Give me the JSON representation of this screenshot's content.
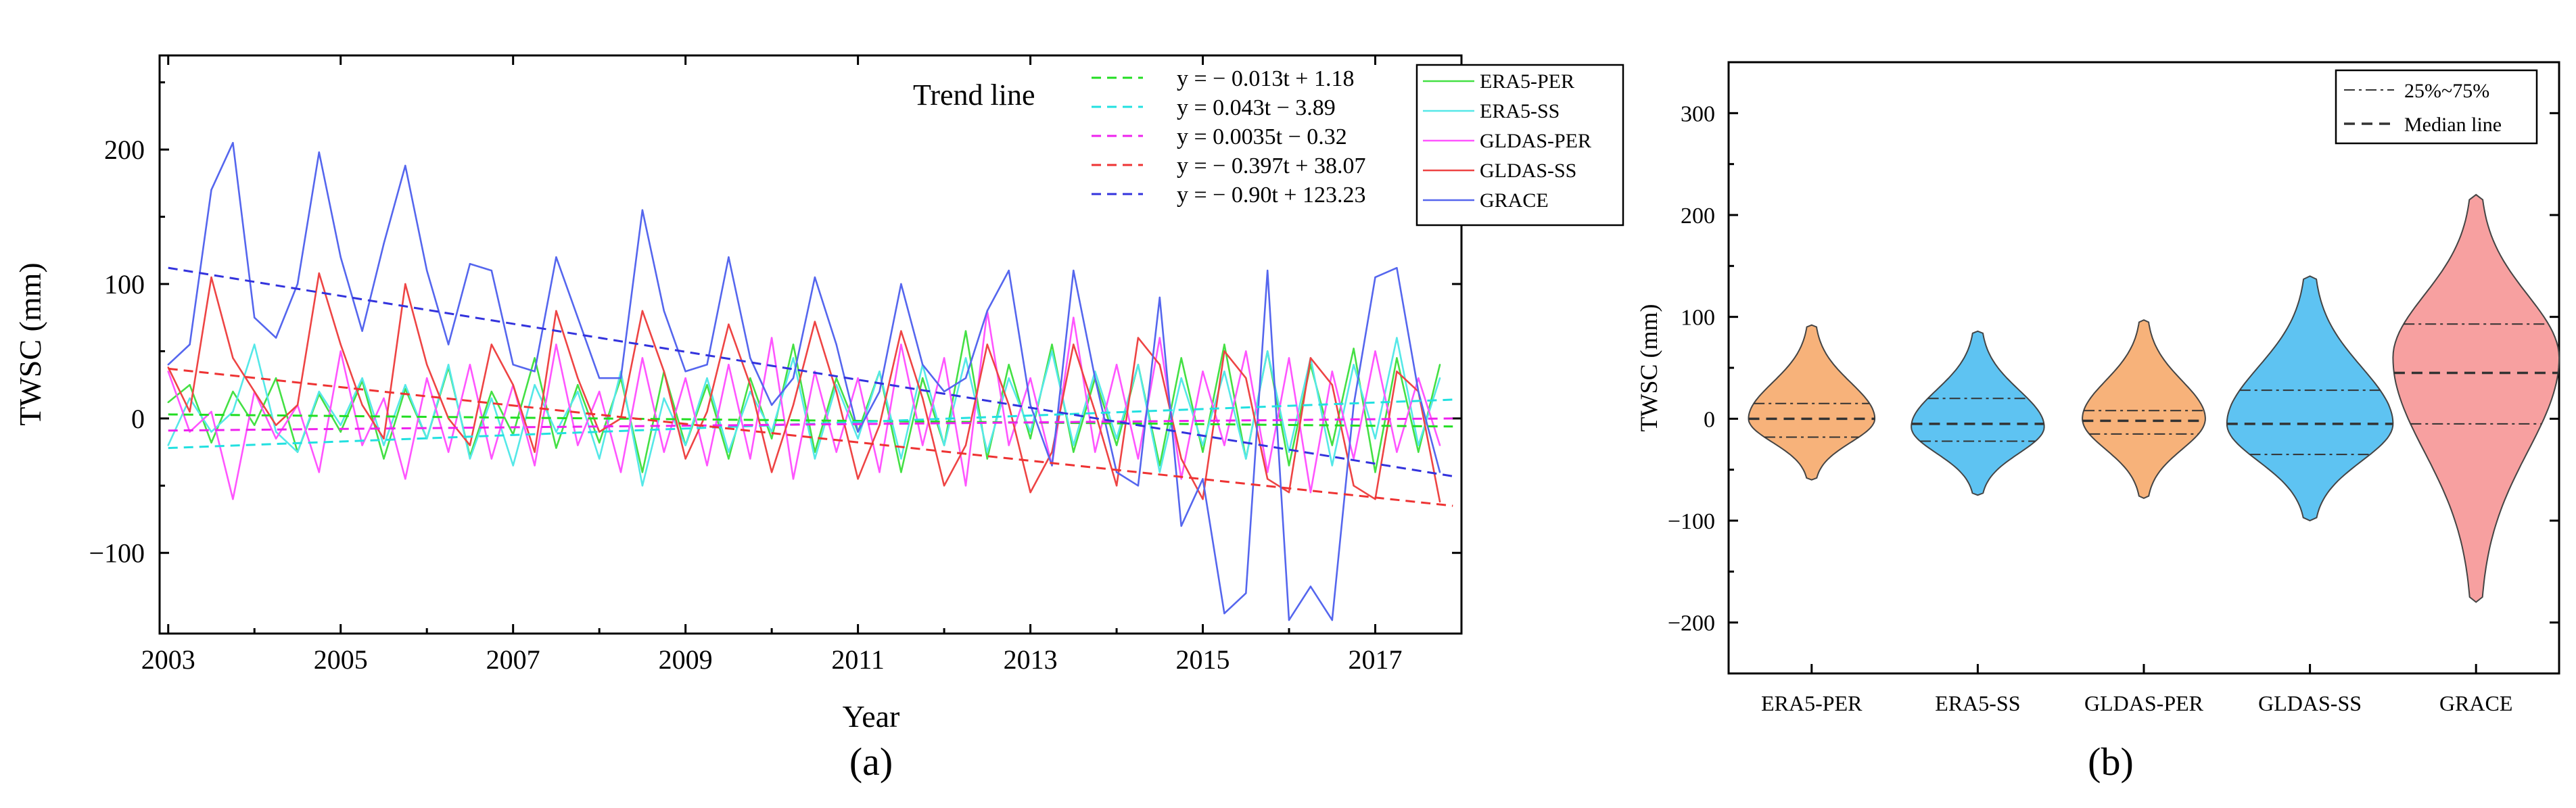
{
  "chart_data": [
    {
      "type": "line",
      "panel_label": "(a)",
      "xlabel": "Year",
      "ylabel": "TWSC (mm)",
      "xlim": [
        2002.9,
        2018.0
      ],
      "ylim": [
        -160,
        270
      ],
      "x_ticks": [
        2003,
        2005,
        2007,
        2009,
        2011,
        2013,
        2015,
        2017
      ],
      "x_tick_labels": [
        "2003",
        "2005",
        "2007",
        "2009",
        "2011",
        "2013",
        "2015",
        "2017"
      ],
      "y_ticks": [
        -100,
        0,
        100,
        200
      ],
      "y_tick_labels": [
        "−100",
        "0",
        "100",
        "200"
      ],
      "legend": {
        "title": "Trend line",
        "position": "top-right",
        "trend_equations": [
          {
            "name": "ERA5-PER",
            "equation": "y = − 0.013t + 1.18",
            "slope": -0.013,
            "intercept": 1.18,
            "color": "#22dd22"
          },
          {
            "name": "ERA5-SS",
            "equation": "y = 0.043t − 3.89",
            "slope": 0.043,
            "intercept": -3.89,
            "color": "#22e0e0"
          },
          {
            "name": "GLDAS-PER",
            "equation": "y = 0.0035t − 0.32",
            "slope": 0.0035,
            "intercept": -0.32,
            "color": "#ee22ee"
          },
          {
            "name": "GLDAS-SS",
            "equation": "y = − 0.397t + 38.07",
            "slope": -0.397,
            "intercept": 38.07,
            "color": "#ee3333"
          },
          {
            "name": "GRACE",
            "equation": "y = − 0.90t + 123.23",
            "slope": -0.9,
            "intercept": 123.23,
            "color": "#3333dd"
          }
        ],
        "series_entries": [
          "ERA5-PER",
          "ERA5-SS",
          "GLDAS-PER",
          "GLDAS-SS",
          "GRACE"
        ]
      },
      "trend_lines": [
        {
          "name": "ERA5-PER",
          "start": [
            2003.0,
            3
          ],
          "end": [
            2017.9,
            -6
          ],
          "color": "#22dd22"
        },
        {
          "name": "ERA5-SS",
          "start": [
            2003.0,
            -22
          ],
          "end": [
            2017.9,
            14
          ],
          "color": "#22e0e0"
        },
        {
          "name": "GLDAS-PER",
          "start": [
            2003.0,
            -9
          ],
          "end": [
            2017.9,
            0
          ],
          "color": "#ee22ee"
        },
        {
          "name": "GLDAS-SS",
          "start": [
            2003.0,
            37
          ],
          "end": [
            2017.9,
            -65
          ],
          "color": "#ee3333"
        },
        {
          "name": "GRACE",
          "start": [
            2003.0,
            112
          ],
          "end": [
            2017.9,
            -43
          ],
          "color": "#3333dd"
        }
      ],
      "series": [
        {
          "name": "ERA5-PER",
          "color": "#44e044",
          "x_start": 2003.0,
          "x_step": 0.25,
          "values": [
            12,
            25,
            -18,
            20,
            -5,
            30,
            -25,
            18,
            -10,
            28,
            -30,
            22,
            -15,
            38,
            -28,
            20,
            -12,
            45,
            -22,
            25,
            -18,
            30,
            -40,
            35,
            -20,
            25,
            -30,
            30,
            -15,
            55,
            -25,
            30,
            -10,
            35,
            -40,
            30,
            -20,
            65,
            -30,
            40,
            -15,
            55,
            -25,
            30,
            -20,
            40,
            -35,
            45,
            -25,
            55,
            -30,
            50,
            -35,
            40,
            -20,
            52,
            -40,
            45,
            -25,
            40
          ]
        },
        {
          "name": "ERA5-SS",
          "color": "#55e8e8",
          "x_start": 2003.0,
          "x_step": 0.25,
          "values": [
            -20,
            15,
            -10,
            5,
            55,
            -10,
            -25,
            20,
            -5,
            30,
            -20,
            25,
            -15,
            40,
            -30,
            15,
            -35,
            25,
            -10,
            20,
            -30,
            35,
            -50,
            15,
            -20,
            30,
            -25,
            20,
            -10,
            45,
            -30,
            25,
            -15,
            35,
            -30,
            40,
            -20,
            45,
            -25,
            30,
            -10,
            50,
            -20,
            35,
            -15,
            40,
            -40,
            30,
            -20,
            35,
            -30,
            50,
            -25,
            45,
            -35,
            40,
            -15,
            60,
            -20,
            30
          ]
        },
        {
          "name": "GLDAS-PER",
          "color": "#ff55ff",
          "x_start": 2003.0,
          "x_step": 0.25,
          "values": [
            35,
            -10,
            5,
            -60,
            20,
            -15,
            10,
            -40,
            50,
            -20,
            15,
            -45,
            30,
            -25,
            40,
            -30,
            25,
            -35,
            55,
            -20,
            20,
            -40,
            45,
            -25,
            30,
            -35,
            40,
            -30,
            60,
            -45,
            35,
            -25,
            30,
            -40,
            55,
            -20,
            45,
            -50,
            80,
            -20,
            30,
            -35,
            75,
            -25,
            40,
            -30,
            60,
            -45,
            35,
            -20,
            50,
            -40,
            45,
            -55,
            35,
            -30,
            50,
            -25,
            30,
            -20
          ]
        },
        {
          "name": "GLDAS-SS",
          "color": "#ee4444",
          "x_start": 2003.0,
          "x_step": 0.25,
          "values": [
            38,
            5,
            105,
            45,
            20,
            -5,
            10,
            108,
            55,
            10,
            -15,
            100,
            40,
            0,
            -20,
            55,
            25,
            -25,
            80,
            30,
            -10,
            0,
            80,
            35,
            -30,
            5,
            70,
            25,
            -40,
            10,
            72,
            20,
            -45,
            -5,
            65,
            15,
            -50,
            -20,
            55,
            10,
            -55,
            -25,
            55,
            5,
            -50,
            60,
            40,
            -30,
            -60,
            50,
            30,
            -45,
            -55,
            45,
            25,
            -50,
            -60,
            35,
            20,
            -62
          ]
        },
        {
          "name": "GRACE",
          "color": "#5566ee",
          "x_start": 2003.0,
          "x_step": 0.25,
          "values": [
            40,
            55,
            170,
            205,
            75,
            60,
            100,
            198,
            120,
            65,
            130,
            188,
            110,
            55,
            115,
            110,
            40,
            35,
            120,
            75,
            30,
            30,
            155,
            80,
            35,
            40,
            120,
            45,
            10,
            30,
            105,
            55,
            -10,
            20,
            100,
            40,
            20,
            30,
            80,
            110,
            10,
            -35,
            110,
            30,
            -40,
            -50,
            90,
            -80,
            -45,
            -145,
            -130,
            110,
            -150,
            -125,
            -150,
            10,
            105,
            112,
            20,
            -40
          ]
        }
      ]
    },
    {
      "type": "violin",
      "panel_label": "(b)",
      "xlabel": "",
      "ylabel": "TWSC (mm)",
      "ylim": [
        -250,
        350
      ],
      "y_ticks": [
        -200,
        -100,
        0,
        100,
        200,
        300
      ],
      "y_tick_labels": [
        "−200",
        "−100",
        "0",
        "100",
        "200",
        "300"
      ],
      "legend": {
        "position": "top-right",
        "entries": [
          {
            "label": "25%~75%",
            "style": "dash-dot"
          },
          {
            "label": "Median line",
            "style": "dashed"
          }
        ]
      },
      "violins": [
        {
          "name": "ERA5-PER",
          "color": "#f7b27a",
          "min": -60,
          "max": 92,
          "q1": -18,
          "median": 0,
          "q3": 15,
          "max_half_width": 0.38,
          "mode": 0
        },
        {
          "name": "ERA5-SS",
          "color": "#5ec3f2",
          "min": -75,
          "max": 86,
          "q1": -22,
          "median": -5,
          "q3": 20,
          "max_half_width": 0.4,
          "mode": -8
        },
        {
          "name": "GLDAS-PER",
          "color": "#f7b27a",
          "min": -78,
          "max": 97,
          "q1": -15,
          "median": -2,
          "q3": 8,
          "max_half_width": 0.37,
          "mode": 0
        },
        {
          "name": "GLDAS-SS",
          "color": "#5ec3f2",
          "min": -100,
          "max": 140,
          "q1": -35,
          "median": -5,
          "q3": 28,
          "max_half_width": 0.5,
          "mode": -5
        },
        {
          "name": "GRACE",
          "color": "#f7a0a0",
          "min": -180,
          "max": 220,
          "q1": -5,
          "median": 45,
          "q3": 93,
          "max_half_width": 0.5,
          "mode": 60
        }
      ]
    }
  ]
}
